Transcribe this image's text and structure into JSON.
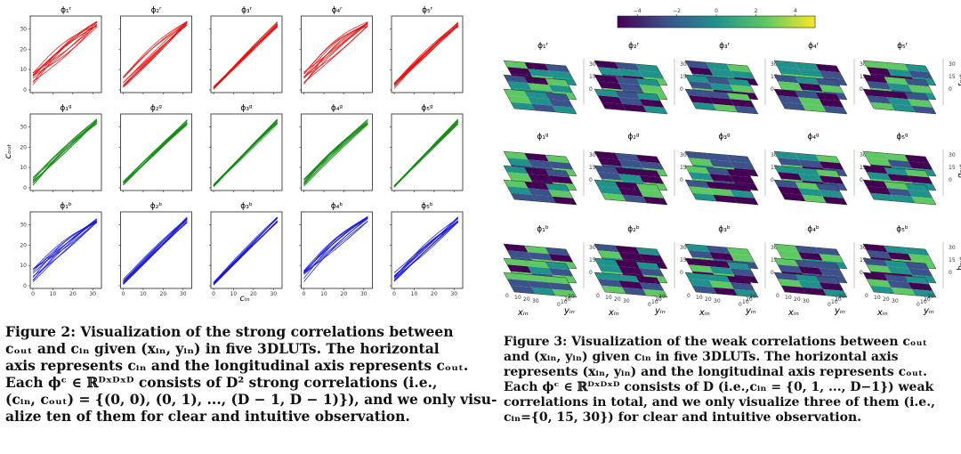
{
  "figure2": {
    "chart_data": {
      "type": "line",
      "xlabel": "c_in",
      "ylabel": "c_out",
      "xlim": [
        0,
        33
      ],
      "ylim": [
        0,
        35
      ],
      "xticks": [
        "0",
        "10",
        "20",
        "30"
      ],
      "yticks": [
        "0",
        "10",
        "20",
        "30"
      ],
      "rows": [
        {
          "channel": "r",
          "color": "#e31010",
          "titles": [
            "ϕ₁ʳ",
            "ϕ₂ʳ",
            "ϕ₃ʳ",
            "ϕ₄ʳ",
            "ϕ₅ʳ"
          ],
          "spread": [
            9,
            6,
            1.5,
            8,
            3
          ]
        },
        {
          "channel": "g",
          "color": "#138a13",
          "titles": [
            "ϕ₁ᵍ",
            "ϕ₂ᵍ",
            "ϕ₃ᵍ",
            "ϕ₄ᵍ",
            "ϕ₅ᵍ"
          ],
          "spread": [
            5,
            3,
            1.5,
            4,
            1
          ]
        },
        {
          "channel": "b",
          "color": "#1818d8",
          "titles": [
            "ϕ₁ᵇ",
            "ϕ₂ᵇ",
            "ϕ₃ᵇ",
            "ϕ₄ᵇ",
            "ϕ₅ᵇ"
          ],
          "spread": [
            8,
            3,
            1.5,
            7,
            6
          ]
        }
      ],
      "curves_per_panel": 10
    }
  },
  "figure3": {
    "colorbar": {
      "min": -5,
      "max": 5,
      "ticks": [
        "−4",
        "−2",
        "0",
        "2",
        "4"
      ],
      "colors": [
        "#440154",
        "#3b528b",
        "#21918c",
        "#5ec962",
        "#fde725"
      ]
    },
    "rows": [
      {
        "titles": [
          "ϕ₁ʳ",
          "ϕ₂ʳ",
          "ϕ₃ʳ",
          "ϕ₄ʳ",
          "ϕ₅ʳ"
        ],
        "zlabel": "r_out"
      },
      {
        "titles": [
          "ϕ₁ᵍ",
          "ϕ₂ᵍ",
          "ϕ₃ᵍ",
          "ϕ₄ᵍ",
          "ϕ₅ᵍ"
        ],
        "zlabel": "g_out"
      },
      {
        "titles": [
          "ϕ₁ᵇ",
          "ϕ₂ᵇ",
          "ϕ₃ᵇ",
          "ϕ₄ᵇ",
          "ϕ₅ᵇ"
        ],
        "zlabel": "b_out"
      }
    ],
    "zticks": [
      "30",
      "15",
      "0"
    ],
    "xlabel": "x_in",
    "ylabel": "y_in",
    "xyticks": [
      "0",
      "10",
      "20",
      "30"
    ]
  },
  "captions": {
    "fig2": [
      "Figure 2: Visualization of the strong correlations between",
      "cₒᵤₜ and cᵢₙ given (xᵢₙ, yᵢₙ) in five 3DLUTs. The horizontal",
      "axis represents cᵢₙ and the longitudinal axis represents cₒᵤₜ.",
      "Each ϕᶜ ∈ ℝᴰˣᴰˣᴰ consists of D² strong correlations (i.e.,",
      "(cᵢₙ, cₒᵤₜ) = {(0, 0), (0, 1), ..., (D − 1, D − 1)}), and we only visu-",
      "alize ten of them for clear and intuitive observation."
    ],
    "fig3": [
      "Figure 3: Visualization of the weak correlations between cₒᵤₜ",
      "and (xᵢₙ, yᵢₙ) given cᵢₙ in five 3DLUTs. The horizontal axis",
      "represents (xᵢₙ, yᵢₙ) and the longitudinal axis represents cₒᵤₜ.",
      "Each ϕᶜ ∈ ℝᴰˣᴰˣᴰ consists of D (i.e.,cᵢₙ = {0, 1, ..., D−1}) weak",
      "correlations in total, and we only visualize three of them (i.e.,",
      "cᵢₙ={0, 15, 30}) for clear and intuitive observation."
    ]
  }
}
